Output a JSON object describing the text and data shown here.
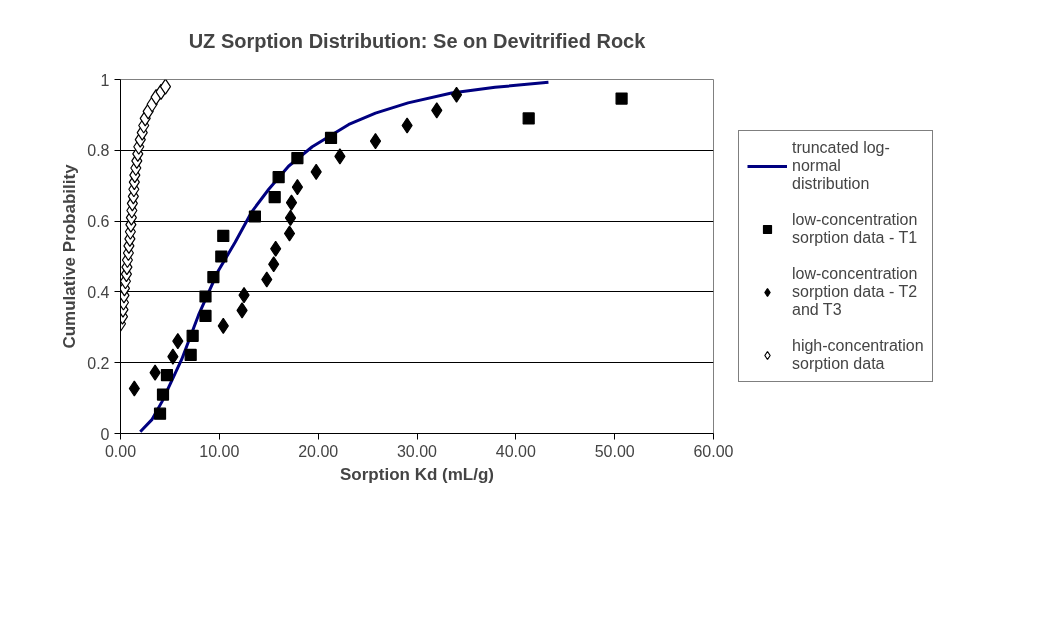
{
  "chart_data": {
    "type": "scatter",
    "title": "UZ Sorption Distribution: Se on Devitrified Rock",
    "xlabel": "Sorption Kd (mL/g)",
    "ylabel": "Cumulative Probability",
    "xlim": [
      0,
      60
    ],
    "ylim": [
      0,
      1
    ],
    "xticks": [
      {
        "value": 0,
        "label": "0.00"
      },
      {
        "value": 10,
        "label": "10.00"
      },
      {
        "value": 20,
        "label": "20.00"
      },
      {
        "value": 30,
        "label": "30.00"
      },
      {
        "value": 40,
        "label": "40.00"
      },
      {
        "value": 50,
        "label": "50.00"
      },
      {
        "value": 60,
        "label": "60.00"
      }
    ],
    "yticks": [
      0,
      0.2,
      0.4,
      0.6,
      0.8,
      1
    ],
    "grid": "y",
    "legend": "right",
    "series": [
      {
        "name": "truncated log-normal distribution",
        "type": "line",
        "color": "#000080",
        "marker": "none",
        "line_style": "solid",
        "x": [
          2.0,
          3.2,
          4.2,
          6.2,
          7.9,
          9.9,
          11.6,
          13.3,
          15.0,
          17.0,
          19.4,
          23.1,
          25.8,
          29.1,
          33.5,
          37.9,
          43.3
        ],
        "values": [
          0.005,
          0.04,
          0.09,
          0.21,
          0.335,
          0.46,
          0.54,
          0.627,
          0.69,
          0.755,
          0.81,
          0.873,
          0.905,
          0.934,
          0.962,
          0.978,
          0.992
        ]
      },
      {
        "name": "low-concentration sorption data - T1",
        "color": "#000000",
        "marker": "square",
        "x": [
          4.0,
          4.3,
          4.7,
          7.1,
          7.3,
          8.6,
          8.6,
          9.4,
          10.2,
          10.4,
          13.6,
          15.6,
          16.0,
          17.9,
          21.3,
          41.3,
          50.7
        ],
        "values": [
          0.056,
          0.11,
          0.165,
          0.222,
          0.276,
          0.332,
          0.387,
          0.442,
          0.5,
          0.558,
          0.613,
          0.668,
          0.724,
          0.778,
          0.835,
          0.89,
          0.946
        ]
      },
      {
        "name": "low-concentration sorption data - T2 and T3",
        "color": "#000000",
        "marker": "diamond",
        "x": [
          1.4,
          3.5,
          5.3,
          5.8,
          10.4,
          12.3,
          12.5,
          14.8,
          15.5,
          15.7,
          17.1,
          17.2,
          17.3,
          17.9,
          19.8,
          22.2,
          25.8,
          29.0,
          32.0,
          34.0
        ],
        "values": [
          0.127,
          0.172,
          0.217,
          0.261,
          0.304,
          0.348,
          0.391,
          0.435,
          0.478,
          0.522,
          0.565,
          0.609,
          0.652,
          0.696,
          0.739,
          0.783,
          0.826,
          0.87,
          0.913,
          0.957
        ]
      },
      {
        "name": "high-concentration sorption data",
        "color": "#ffffff",
        "marker": "diamond",
        "x": [
          0.0,
          0.2,
          0.25,
          0.3,
          0.35,
          0.4,
          0.5,
          0.6,
          0.65,
          0.7,
          0.8,
          0.85,
          0.95,
          1.0,
          1.05,
          1.1,
          1.15,
          1.2,
          1.3,
          1.35,
          1.4,
          1.45,
          1.55,
          1.65,
          1.75,
          1.85,
          2.0,
          2.2,
          2.35,
          2.5,
          2.8,
          3.2,
          3.6,
          4.1,
          4.55
        ],
        "values": [
          0.31,
          0.33,
          0.35,
          0.37,
          0.39,
          0.41,
          0.43,
          0.45,
          0.47,
          0.49,
          0.51,
          0.53,
          0.55,
          0.57,
          0.59,
          0.61,
          0.63,
          0.65,
          0.67,
          0.69,
          0.71,
          0.73,
          0.75,
          0.77,
          0.79,
          0.81,
          0.83,
          0.85,
          0.87,
          0.89,
          0.91,
          0.93,
          0.95,
          0.965,
          0.98
        ]
      }
    ]
  }
}
